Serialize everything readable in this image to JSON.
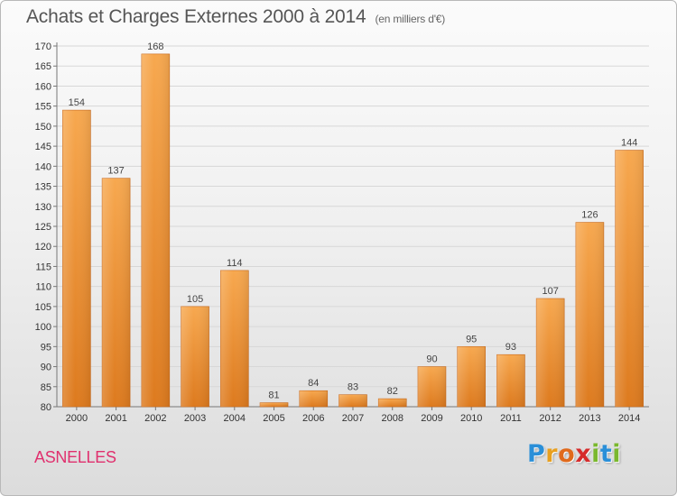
{
  "header": {
    "title": "Achats et Charges Externes 2000 à 2014",
    "subtitle": "(en milliers d'€)"
  },
  "footer": {
    "place": "ASNELLES",
    "logo": {
      "letters": [
        "P",
        "r",
        "o",
        "x",
        "i",
        "t",
        "i"
      ],
      "colors": [
        "#2a8fd8",
        "#e8a020",
        "#e06a1c",
        "#d62b2b",
        "#7ab82e",
        "#2a8fd8",
        "#7ab82e"
      ]
    }
  },
  "colors": {
    "bar_top": "#f7a84f",
    "bar_bottom": "#dd7a1e",
    "gridline": "#d7d7d7",
    "place": "#e0306e"
  },
  "chart_data": {
    "type": "bar",
    "title": "Achats et Charges Externes 2000 à 2014",
    "subtitle": "(en milliers d'€)",
    "xlabel": "",
    "ylabel": "",
    "categories": [
      "2000",
      "2001",
      "2002",
      "2003",
      "2004",
      "2005",
      "2006",
      "2007",
      "2008",
      "2009",
      "2010",
      "2011",
      "2012",
      "2013",
      "2014"
    ],
    "values": [
      154,
      137,
      168,
      105,
      114,
      81,
      84,
      83,
      82,
      90,
      95,
      93,
      107,
      126,
      144
    ],
    "ylim": [
      80,
      170
    ],
    "yticks": [
      80,
      85,
      90,
      95,
      100,
      105,
      110,
      115,
      120,
      125,
      130,
      135,
      140,
      145,
      150,
      155,
      160,
      165,
      170
    ],
    "grid": true,
    "legend": "none"
  }
}
